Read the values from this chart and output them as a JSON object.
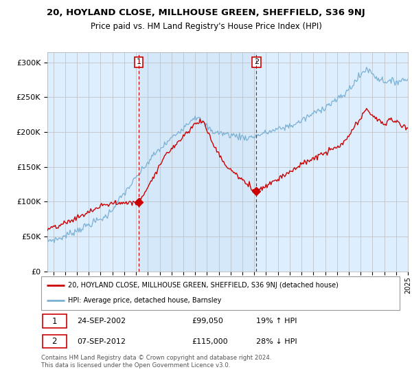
{
  "title1": "20, HOYLAND CLOSE, MILLHOUSE GREEN, SHEFFIELD, S36 9NJ",
  "title2": "Price paid vs. HM Land Registry's House Price Index (HPI)",
  "hpi_color": "#7ab0d4",
  "price_color": "#cc0000",
  "bg_color": "#ddeeff",
  "shade_color": "#c8ddf0",
  "ylim": [
    0,
    310000
  ],
  "xlim_start": 1995.0,
  "xlim_end": 2025.5,
  "sale1_year": 2002.73,
  "sale1_price": 99050,
  "sale2_year": 2012.68,
  "sale2_price": 115000,
  "legend_label1": "20, HOYLAND CLOSE, MILLHOUSE GREEN, SHEFFIELD, S36 9NJ (detached house)",
  "legend_label2": "HPI: Average price, detached house, Barnsley",
  "table_row1": [
    "1",
    "24-SEP-2002",
    "£99,050",
    "19% ↑ HPI"
  ],
  "table_row2": [
    "2",
    "07-SEP-2012",
    "£115,000",
    "28% ↓ HPI"
  ],
  "footnote": "Contains HM Land Registry data © Crown copyright and database right 2024.\nThis data is licensed under the Open Government Licence v3.0."
}
